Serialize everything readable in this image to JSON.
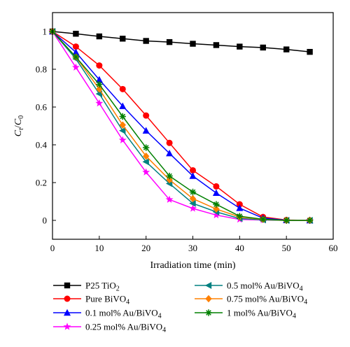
{
  "chart_data": {
    "type": "line",
    "xlabel": "Irradiation time (min)",
    "ylabel": {
      "base": "C",
      "sub": "t",
      "slash": "/",
      "base2": "C",
      "sub2": "0"
    },
    "xlim": [
      0,
      60
    ],
    "ylim": [
      -0.1,
      1.1
    ],
    "xticks": [
      0,
      10,
      20,
      30,
      40,
      50,
      60
    ],
    "yticks": [
      0,
      0.2,
      0.4,
      0.6,
      0.8,
      1
    ],
    "xtick_labels": [
      "0",
      "10",
      "20",
      "30",
      "40",
      "50",
      "60"
    ],
    "ytick_labels": [
      "0",
      "0.2",
      "0.4",
      "0.6",
      "0.8",
      "1"
    ],
    "grid": false,
    "legend_position": "bottom, two columns",
    "series": [
      {
        "name": "P25 TiO2",
        "label": {
          "main": "P25 TiO",
          "sub": "2",
          "tail": ""
        },
        "color": "#000000",
        "marker": "square",
        "x": [
          0,
          5,
          10,
          15,
          20,
          25,
          30,
          35,
          40,
          45,
          50,
          55
        ],
        "y": [
          1.0,
          0.988,
          0.974,
          0.962,
          0.95,
          0.944,
          0.935,
          0.928,
          0.92,
          0.915,
          0.905,
          0.892
        ]
      },
      {
        "name": "Pure BiVO4",
        "label": {
          "main": "Pure BiVO",
          "sub": "4",
          "tail": ""
        },
        "color": "#ff0000",
        "marker": "circle",
        "x": [
          0,
          5,
          10,
          15,
          20,
          25,
          30,
          35,
          40,
          45,
          50,
          55
        ],
        "y": [
          1.0,
          0.92,
          0.82,
          0.695,
          0.555,
          0.41,
          0.265,
          0.18,
          0.085,
          0.018,
          0.002,
          0.0
        ]
      },
      {
        "name": "0.1 mol% Au/BiVO4",
        "label": {
          "main": "0.1 mol% Au/BiVO",
          "sub": "4",
          "tail": ""
        },
        "color": "#0000ff",
        "marker": "triangle-up",
        "x": [
          0,
          5,
          10,
          15,
          20,
          25,
          30,
          35,
          40,
          45,
          50,
          55
        ],
        "y": [
          1.0,
          0.89,
          0.745,
          0.605,
          0.475,
          0.355,
          0.235,
          0.145,
          0.065,
          0.012,
          0.001,
          0.0
        ]
      },
      {
        "name": "0.25 mol% Au/BiVO4",
        "label": {
          "main": "0.25 mol% Au/BiVO",
          "sub": "4",
          "tail": ""
        },
        "color": "#ff00ff",
        "marker": "star",
        "x": [
          0,
          5,
          10,
          15,
          20,
          25,
          30,
          35,
          40,
          45,
          50,
          55
        ],
        "y": [
          1.0,
          0.81,
          0.62,
          0.425,
          0.255,
          0.11,
          0.063,
          0.028,
          0.005,
          0.002,
          0.0,
          0.0
        ]
      },
      {
        "name": "0.5 mol% Au/BiVO4",
        "label": {
          "main": "0.5 mol% Au/BiVO",
          "sub": "4",
          "tail": ""
        },
        "color": "#008080",
        "marker": "triangle-left",
        "x": [
          0,
          5,
          10,
          15,
          20,
          25,
          30,
          35,
          40,
          45,
          50,
          55
        ],
        "y": [
          1.0,
          0.855,
          0.67,
          0.475,
          0.31,
          0.195,
          0.09,
          0.045,
          0.01,
          0.003,
          0.0,
          0.0
        ]
      },
      {
        "name": "0.75 mol% Au/BiVO4",
        "label": {
          "main": "0.75 mol% Au/BiVO",
          "sub": "4",
          "tail": ""
        },
        "color": "#ff8000",
        "marker": "diamond",
        "x": [
          0,
          5,
          10,
          15,
          20,
          25,
          30,
          35,
          40,
          45,
          50,
          55
        ],
        "y": [
          1.0,
          0.865,
          0.695,
          0.505,
          0.34,
          0.215,
          0.115,
          0.06,
          0.018,
          0.005,
          0.0,
          0.0
        ]
      },
      {
        "name": "1 mol% Au/BiVO4",
        "label": {
          "main": "1 mol% Au/BiVO",
          "sub": "4",
          "tail": ""
        },
        "color": "#008000",
        "marker": "asterisk",
        "x": [
          0,
          5,
          10,
          15,
          20,
          25,
          30,
          35,
          40,
          45,
          50,
          55
        ],
        "y": [
          1.0,
          0.865,
          0.72,
          0.55,
          0.385,
          0.235,
          0.15,
          0.085,
          0.022,
          0.006,
          0.0,
          0.0
        ]
      }
    ]
  }
}
